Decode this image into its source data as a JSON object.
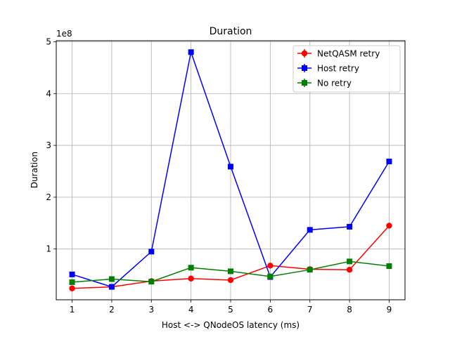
{
  "chart_data": {
    "type": "line",
    "title": "Duration",
    "xlabel": "Host <-> QNodeOS latency (ms)",
    "ylabel": "Duration",
    "y_scale_label": "1e8",
    "x": [
      1,
      2,
      3,
      4,
      5,
      6,
      7,
      8,
      9
    ],
    "x_ticks": [
      "1",
      "2",
      "3",
      "4",
      "5",
      "6",
      "7",
      "8",
      "9"
    ],
    "y_ticks": [
      1,
      2,
      3,
      4,
      5
    ],
    "y_tick_labels": [
      "1",
      "2",
      "3",
      "4",
      "5"
    ],
    "xlim": [
      0.6,
      9.4
    ],
    "ylim": [
      0.02,
      5.02
    ],
    "y_multiplier": 100000000,
    "grid": true,
    "legend_position": "upper right",
    "series": [
      {
        "name": "NetQASM retry",
        "color": "#ff0000",
        "marker": "circle",
        "values": [
          0.24,
          0.27,
          0.38,
          0.43,
          0.4,
          0.68,
          0.61,
          0.6,
          1.45
        ]
      },
      {
        "name": "Host retry",
        "color": "#0000ff",
        "marker": "square",
        "values": [
          0.51,
          0.27,
          0.95,
          4.8,
          2.59,
          0.46,
          1.37,
          1.43,
          2.69
        ]
      },
      {
        "name": "No retry",
        "color": "#008000",
        "marker": "square",
        "values": [
          0.36,
          0.42,
          0.37,
          0.64,
          0.57,
          0.47,
          0.6,
          0.76,
          0.67
        ]
      }
    ]
  }
}
